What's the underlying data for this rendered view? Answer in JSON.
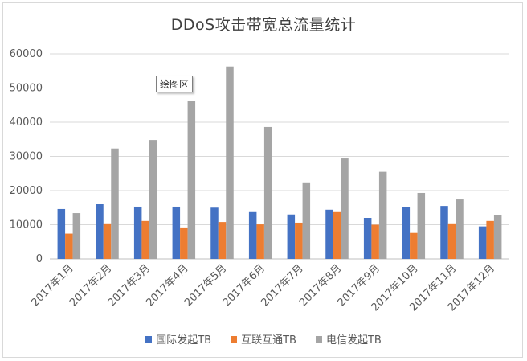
{
  "chart_data": {
    "type": "bar",
    "title": "DDoS攻击带宽总流量统计",
    "categories": [
      "2017年1月",
      "2017年2月",
      "2017年3月",
      "2017年4月",
      "2017年5月",
      "2017年6月",
      "2017年7月",
      "2017年8月",
      "2017年9月",
      "2017年10月",
      "2017年11月",
      "2017年12月"
    ],
    "series": [
      {
        "name": "国际发起TB",
        "color": "#4472c4",
        "values": [
          14600,
          16000,
          15300,
          15300,
          15000,
          13700,
          13000,
          14400,
          12000,
          15200,
          15500,
          9500
        ]
      },
      {
        "name": "互联互通TB",
        "color": "#ed7d31",
        "values": [
          7400,
          10400,
          11100,
          9200,
          10800,
          10100,
          10600,
          13700,
          10000,
          7600,
          10400,
          11100
        ]
      },
      {
        "name": "电信发起TB",
        "color": "#a5a5a5",
        "values": [
          13400,
          32300,
          34800,
          46200,
          56300,
          38600,
          22400,
          29400,
          25500,
          19300,
          17400,
          12900
        ]
      }
    ],
    "yticks": [
      "0",
      "10000",
      "20000",
      "30000",
      "40000",
      "50000",
      "60000"
    ],
    "ylim": [
      0,
      60000
    ],
    "grid": true,
    "legend_position": "bottom",
    "tooltip_text": "绘图区"
  }
}
